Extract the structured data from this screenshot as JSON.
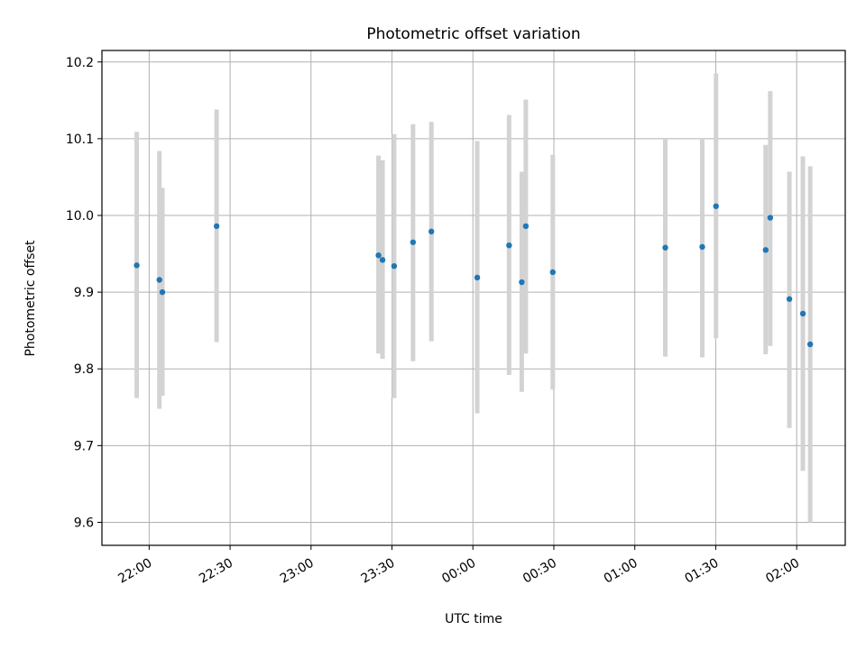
{
  "chart_data": {
    "type": "scatter",
    "title": "Photometric offset variation",
    "xlabel": "UTC time",
    "ylabel": "Photometric offset",
    "x_ticks": [
      "22:00",
      "22:30",
      "23:00",
      "23:30",
      "00:00",
      "00:30",
      "01:00",
      "01:30",
      "02:00"
    ],
    "x_tick_minutes": [
      0,
      30,
      60,
      90,
      120,
      150,
      180,
      210,
      240
    ],
    "xlim_minutes": [
      -17.5,
      258
    ],
    "y_ticks": [
      "9.6",
      "9.7",
      "9.8",
      "9.9",
      "10.0",
      "10.1",
      "10.2"
    ],
    "y_tick_values": [
      9.6,
      9.7,
      9.8,
      9.9,
      10.0,
      10.1,
      10.2
    ],
    "ylim": [
      9.57,
      10.215
    ],
    "grid": true,
    "marker_color": "#1f77b4",
    "errorbar_color": "#d3d3d3",
    "series": [
      {
        "points": [
          {
            "t": "21:55",
            "minutes": -4.6,
            "y": 9.935,
            "ylo": 9.762,
            "yhi": 10.109
          },
          {
            "t": "22:04",
            "minutes": 3.8,
            "y": 9.916,
            "ylo": 9.748,
            "yhi": 10.084
          },
          {
            "t": "22:05",
            "minutes": 4.9,
            "y": 9.9,
            "ylo": 9.765,
            "yhi": 10.036
          },
          {
            "t": "22:25",
            "minutes": 25.0,
            "y": 9.986,
            "ylo": 9.835,
            "yhi": 10.138
          },
          {
            "t": "23:25",
            "minutes": 85.0,
            "y": 9.948,
            "ylo": 9.82,
            "yhi": 10.078
          },
          {
            "t": "23:27",
            "minutes": 86.5,
            "y": 9.942,
            "ylo": 9.813,
            "yhi": 10.072
          },
          {
            "t": "23:31",
            "minutes": 90.8,
            "y": 9.934,
            "ylo": 9.762,
            "yhi": 10.106
          },
          {
            "t": "23:38",
            "minutes": 97.8,
            "y": 9.965,
            "ylo": 9.81,
            "yhi": 10.119
          },
          {
            "t": "23:45",
            "minutes": 104.6,
            "y": 9.979,
            "ylo": 9.836,
            "yhi": 10.122
          },
          {
            "t": "00:02",
            "minutes": 121.6,
            "y": 9.919,
            "ylo": 9.742,
            "yhi": 10.097
          },
          {
            "t": "00:13",
            "minutes": 133.4,
            "y": 9.961,
            "ylo": 9.792,
            "yhi": 10.131
          },
          {
            "t": "00:18",
            "minutes": 138.1,
            "y": 9.913,
            "ylo": 9.77,
            "yhi": 10.057
          },
          {
            "t": "00:20",
            "minutes": 139.6,
            "y": 9.986,
            "ylo": 9.82,
            "yhi": 10.151
          },
          {
            "t": "00:30",
            "minutes": 149.6,
            "y": 9.926,
            "ylo": 9.773,
            "yhi": 10.079
          },
          {
            "t": "01:12",
            "minutes": 191.3,
            "y": 9.958,
            "ylo": 9.816,
            "yhi": 10.099
          },
          {
            "t": "01:25",
            "minutes": 205.0,
            "y": 9.959,
            "ylo": 9.815,
            "yhi": 10.101
          },
          {
            "t": "01:30",
            "minutes": 210.1,
            "y": 10.012,
            "ylo": 9.84,
            "yhi": 10.185
          },
          {
            "t": "01:49",
            "minutes": 228.5,
            "y": 9.955,
            "ylo": 9.819,
            "yhi": 10.092
          },
          {
            "t": "01:50",
            "minutes": 230.2,
            "y": 9.997,
            "ylo": 9.83,
            "yhi": 10.162
          },
          {
            "t": "01:57",
            "minutes": 237.3,
            "y": 9.891,
            "ylo": 9.723,
            "yhi": 10.057
          },
          {
            "t": "02:02",
            "minutes": 242.3,
            "y": 9.872,
            "ylo": 9.667,
            "yhi": 10.077
          },
          {
            "t": "02:05",
            "minutes": 245.0,
            "y": 9.832,
            "ylo": 9.6,
            "yhi": 10.064
          }
        ]
      }
    ]
  }
}
